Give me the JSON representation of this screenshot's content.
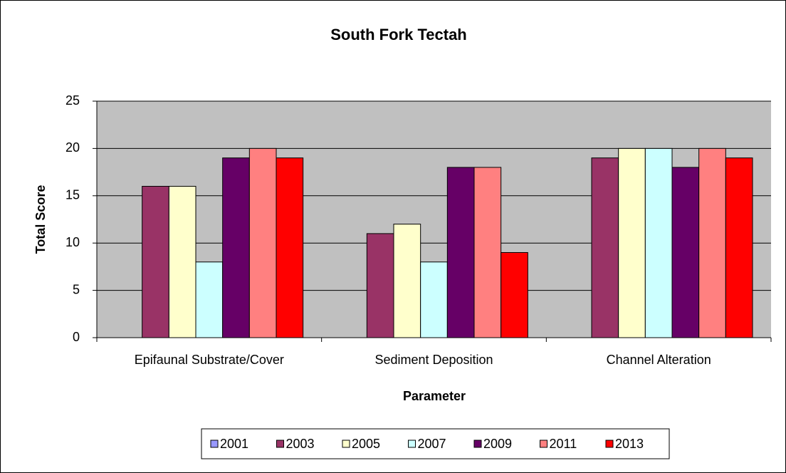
{
  "chart_data": {
    "type": "bar",
    "title": "South Fork Tectah",
    "x_label": "Parameter",
    "y_label": "Total Score",
    "categories": [
      "Epifaunal Substrate/Cover",
      "Sediment Deposition",
      "Channel Alteration"
    ],
    "series": [
      {
        "name": "2001",
        "color": "#9999ff",
        "values": [
          null,
          null,
          null
        ]
      },
      {
        "name": "2003",
        "color": "#993366",
        "values": [
          16,
          11,
          19
        ]
      },
      {
        "name": "2005",
        "color": "#ffffcc",
        "values": [
          16,
          12,
          20
        ]
      },
      {
        "name": "2007",
        "color": "#ccffff",
        "values": [
          8,
          8,
          20
        ]
      },
      {
        "name": "2009",
        "color": "#660066",
        "values": [
          19,
          18,
          18
        ]
      },
      {
        "name": "2011",
        "color": "#ff8080",
        "values": [
          20,
          18,
          20
        ]
      },
      {
        "name": "2013",
        "color": "#ff0000",
        "values": [
          19,
          9,
          19
        ]
      }
    ],
    "ylim": [
      0,
      25
    ],
    "yticks": [
      0,
      5,
      10,
      15,
      20,
      25
    ],
    "grid": true,
    "legend": "bottom"
  }
}
